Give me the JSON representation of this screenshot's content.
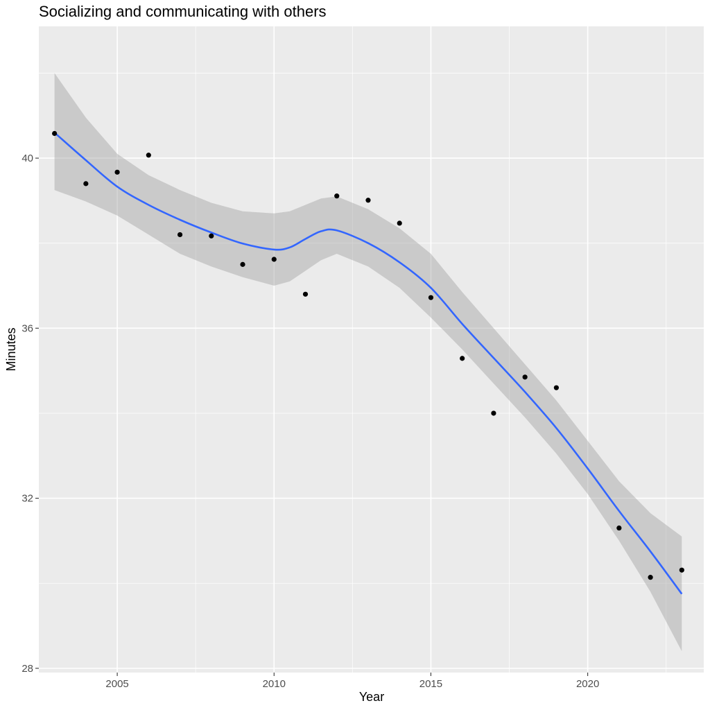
{
  "chart_data": {
    "type": "scatter",
    "title": "Socializing and communicating with others",
    "xlabel": "Year",
    "ylabel": "Minutes",
    "xlim": [
      2002.5,
      2023.7
    ],
    "ylim": [
      27.9,
      43.1
    ],
    "x_ticks": [
      2005,
      2010,
      2015,
      2020
    ],
    "y_ticks": [
      28,
      32,
      36,
      40
    ],
    "grid": true,
    "colors": {
      "panel": "#ebebeb",
      "grid_major": "#ffffff",
      "point": "#000000",
      "smooth_line": "#3366ff",
      "ribbon": "#999999"
    },
    "points": {
      "x": [
        2003,
        2004,
        2005,
        2006,
        2007,
        2008,
        2009,
        2010,
        2011,
        2012,
        2013,
        2014,
        2015,
        2016,
        2017,
        2018,
        2019,
        2021,
        2022,
        2023
      ],
      "y": [
        40.58,
        39.4,
        39.67,
        40.07,
        38.2,
        38.17,
        37.5,
        37.62,
        36.8,
        39.11,
        39.01,
        38.47,
        36.72,
        35.29,
        34.0,
        34.85,
        34.6,
        31.3,
        30.14,
        30.31
      ]
    },
    "smooth": {
      "x": [
        2003,
        2004,
        2005,
        2006,
        2007,
        2008,
        2009,
        2010,
        2010.5,
        2011,
        2011.5,
        2012,
        2013,
        2014,
        2015,
        2016,
        2017,
        2018,
        2019,
        2020,
        2021,
        2022,
        2023
      ],
      "y": [
        40.6,
        39.95,
        39.33,
        38.9,
        38.55,
        38.25,
        37.99,
        37.85,
        37.9,
        38.1,
        38.28,
        38.3,
        38.0,
        37.55,
        36.95,
        36.1,
        35.3,
        34.5,
        33.65,
        32.7,
        31.7,
        30.75,
        29.75
      ],
      "lower": [
        39.25,
        38.98,
        38.65,
        38.2,
        37.75,
        37.45,
        37.2,
        37.0,
        37.1,
        37.35,
        37.6,
        37.75,
        37.45,
        36.95,
        36.25,
        35.5,
        34.7,
        33.9,
        33.05,
        32.1,
        31.0,
        29.8,
        28.4
      ],
      "upper": [
        42.0,
        40.95,
        40.1,
        39.6,
        39.25,
        38.95,
        38.75,
        38.7,
        38.75,
        38.9,
        39.05,
        39.1,
        38.8,
        38.35,
        37.75,
        36.85,
        36.0,
        35.15,
        34.3,
        33.35,
        32.4,
        31.65,
        31.1
      ]
    }
  }
}
